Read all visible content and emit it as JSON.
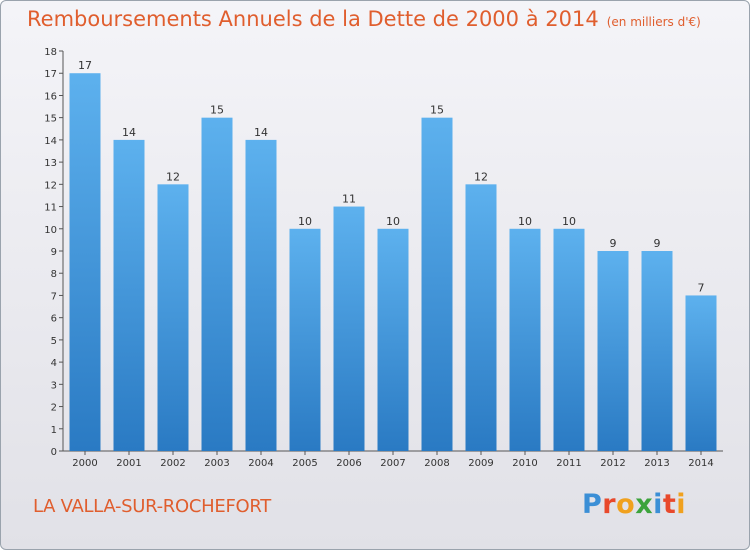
{
  "title": "Remboursements Annuels de la Dette de 2000 à 2014",
  "unit_note": "(en milliers d'€)",
  "commune": "LA VALLA-SUR-ROCHEFORT",
  "logo": {
    "letters": [
      "P",
      "r",
      "o",
      "x",
      "i",
      "t",
      "i"
    ],
    "colors": [
      "#3b8fd6",
      "#e8492c",
      "#f0a11e",
      "#3ca33c",
      "#3b8fd6",
      "#e8492c",
      "#f0a11e"
    ]
  },
  "colors": {
    "title": "#e05e2e",
    "bar_top": "#5db1ee",
    "bar_bottom": "#2a7ac3"
  },
  "chart_data": {
    "type": "bar",
    "categories": [
      "2000",
      "2001",
      "2002",
      "2003",
      "2004",
      "2005",
      "2006",
      "2007",
      "2008",
      "2009",
      "2010",
      "2011",
      "2012",
      "2013",
      "2014"
    ],
    "values": [
      17,
      14,
      12,
      15,
      14,
      10,
      11,
      10,
      15,
      12,
      10,
      10,
      9,
      9,
      7
    ],
    "title": "Remboursements Annuels de la Dette de 2000 à 2014",
    "subtitle": "(en milliers d'€)",
    "xlabel": "",
    "ylabel": "",
    "ylim": [
      0,
      18
    ],
    "yticks": [
      0,
      1,
      2,
      3,
      4,
      5,
      6,
      7,
      8,
      9,
      10,
      11,
      12,
      13,
      14,
      15,
      16,
      17,
      18
    ],
    "grid": false,
    "data_labels": true
  }
}
